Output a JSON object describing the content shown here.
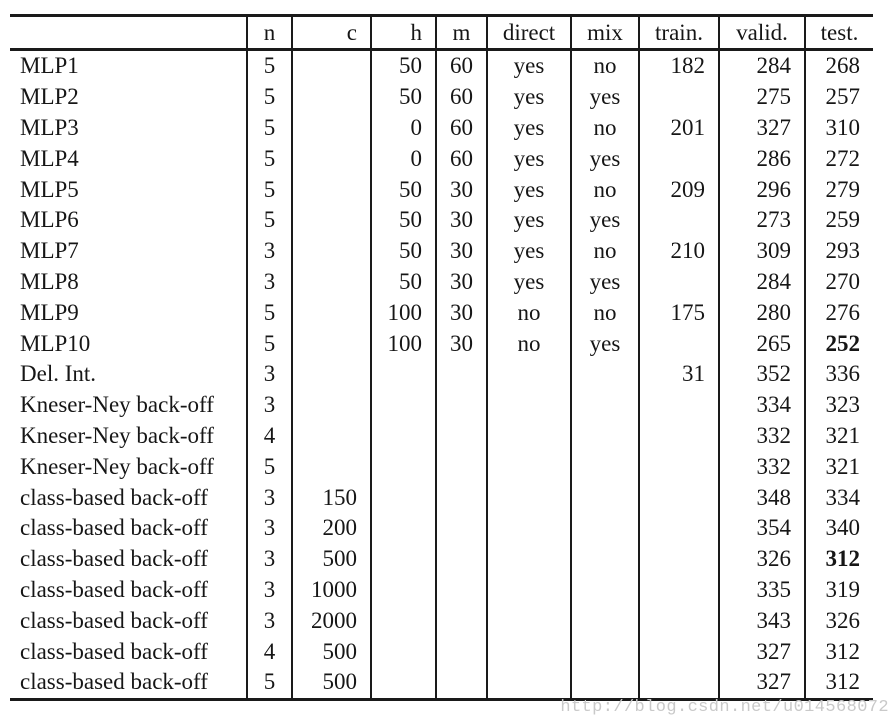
{
  "page": {
    "background": "#ffffff",
    "text_color": "#161616",
    "border_color": "#1a1a1a",
    "watermark_color": "#c9c9c9"
  },
  "watermark": "http://blog.csdn.net/u014568072",
  "table": {
    "columns": [
      {
        "key": "label",
        "header": ""
      },
      {
        "key": "n",
        "header": "n"
      },
      {
        "key": "c",
        "header": "c"
      },
      {
        "key": "h",
        "header": "h"
      },
      {
        "key": "m",
        "header": "m"
      },
      {
        "key": "direct",
        "header": "direct"
      },
      {
        "key": "mix",
        "header": "mix"
      },
      {
        "key": "train",
        "header": "train."
      },
      {
        "key": "valid",
        "header": "valid."
      },
      {
        "key": "test",
        "header": "test."
      }
    ],
    "rows": [
      {
        "cells": [
          "MLP1",
          "5",
          "",
          "50",
          "60",
          "yes",
          "no",
          "182",
          "284",
          "268"
        ],
        "bold": []
      },
      {
        "cells": [
          "MLP2",
          "5",
          "",
          "50",
          "60",
          "yes",
          "yes",
          "",
          "275",
          "257"
        ],
        "bold": []
      },
      {
        "cells": [
          "MLP3",
          "5",
          "",
          "0",
          "60",
          "yes",
          "no",
          "201",
          "327",
          "310"
        ],
        "bold": []
      },
      {
        "cells": [
          "MLP4",
          "5",
          "",
          "0",
          "60",
          "yes",
          "yes",
          "",
          "286",
          "272"
        ],
        "bold": []
      },
      {
        "cells": [
          "MLP5",
          "5",
          "",
          "50",
          "30",
          "yes",
          "no",
          "209",
          "296",
          "279"
        ],
        "bold": []
      },
      {
        "cells": [
          "MLP6",
          "5",
          "",
          "50",
          "30",
          "yes",
          "yes",
          "",
          "273",
          "259"
        ],
        "bold": []
      },
      {
        "cells": [
          "MLP7",
          "3",
          "",
          "50",
          "30",
          "yes",
          "no",
          "210",
          "309",
          "293"
        ],
        "bold": []
      },
      {
        "cells": [
          "MLP8",
          "3",
          "",
          "50",
          "30",
          "yes",
          "yes",
          "",
          "284",
          "270"
        ],
        "bold": []
      },
      {
        "cells": [
          "MLP9",
          "5",
          "",
          "100",
          "30",
          "no",
          "no",
          "175",
          "280",
          "276"
        ],
        "bold": []
      },
      {
        "cells": [
          "MLP10",
          "5",
          "",
          "100",
          "30",
          "no",
          "yes",
          "",
          "265",
          "252"
        ],
        "bold": [
          9
        ]
      },
      {
        "cells": [
          "Del. Int.",
          "3",
          "",
          "",
          "",
          "",
          "",
          "31",
          "352",
          "336"
        ],
        "bold": []
      },
      {
        "cells": [
          "Kneser-Ney back-off",
          "3",
          "",
          "",
          "",
          "",
          "",
          "",
          "334",
          "323"
        ],
        "bold": []
      },
      {
        "cells": [
          "Kneser-Ney back-off",
          "4",
          "",
          "",
          "",
          "",
          "",
          "",
          "332",
          "321"
        ],
        "bold": []
      },
      {
        "cells": [
          "Kneser-Ney back-off",
          "5",
          "",
          "",
          "",
          "",
          "",
          "",
          "332",
          "321"
        ],
        "bold": []
      },
      {
        "cells": [
          "class-based back-off",
          "3",
          "150",
          "",
          "",
          "",
          "",
          "",
          "348",
          "334"
        ],
        "bold": []
      },
      {
        "cells": [
          "class-based back-off",
          "3",
          "200",
          "",
          "",
          "",
          "",
          "",
          "354",
          "340"
        ],
        "bold": []
      },
      {
        "cells": [
          "class-based back-off",
          "3",
          "500",
          "",
          "",
          "",
          "",
          "",
          "326",
          "312"
        ],
        "bold": [
          9
        ]
      },
      {
        "cells": [
          "class-based back-off",
          "3",
          "1000",
          "",
          "",
          "",
          "",
          "",
          "335",
          "319"
        ],
        "bold": []
      },
      {
        "cells": [
          "class-based back-off",
          "3",
          "2000",
          "",
          "",
          "",
          "",
          "",
          "343",
          "326"
        ],
        "bold": []
      },
      {
        "cells": [
          "class-based back-off",
          "4",
          "500",
          "",
          "",
          "",
          "",
          "",
          "327",
          "312"
        ],
        "bold": []
      },
      {
        "cells": [
          "class-based back-off",
          "5",
          "500",
          "",
          "",
          "",
          "",
          "",
          "327",
          "312"
        ],
        "bold": []
      }
    ]
  }
}
